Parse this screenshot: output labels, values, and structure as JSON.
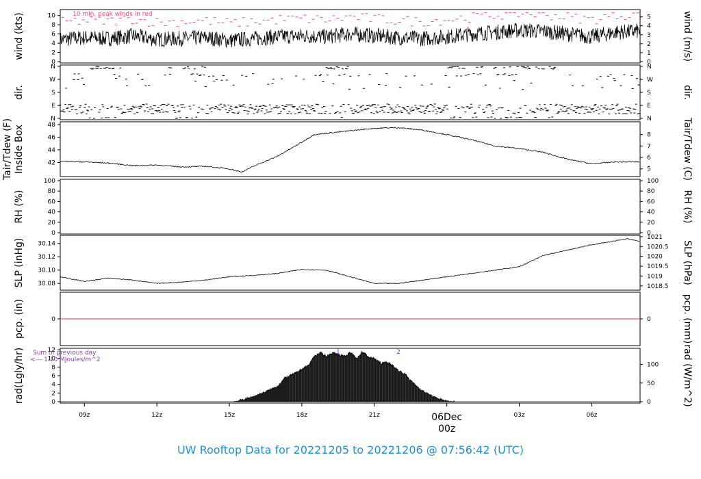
{
  "footer_title": "UW Rooftop Data for 20221205  to  20221206 @ 07:56:42  (UTC)",
  "date_marker": {
    "label_top": "06Dec",
    "label_bottom": "00z",
    "color": "#d05070"
  },
  "x_ticks": [
    "09z",
    "12z",
    "15z",
    "18z",
    "21z",
    "03z",
    "06z"
  ],
  "x_axis_hours": {
    "start": 8,
    "end": 32,
    "ticks": [
      9,
      12,
      15,
      18,
      21,
      27,
      30
    ],
    "date_hour": 24
  },
  "colors": {
    "axis": "#000000",
    "peak": "#e0507a",
    "precip": "#d04050",
    "rad_note": "#9932cc",
    "title": "#1e90d8",
    "rad_fill": "#1c1c1c"
  },
  "chart_data": [
    {
      "type": "line",
      "panel": "wind",
      "ylabel_left": "wind (kts)",
      "ylabel_right": "wind (m/s)",
      "left_ticks": [
        "0",
        "2",
        "4",
        "6",
        "8",
        "10"
      ],
      "right_ticks": [
        "0",
        "1",
        "2",
        "3",
        "4",
        "5"
      ],
      "ylim": [
        0,
        11
      ],
      "annotation": "10 min. peak winds in red",
      "series": [
        {
          "x": [
            8,
            9,
            10,
            11,
            12,
            13,
            14,
            15,
            16,
            17,
            18,
            19,
            20,
            21,
            22,
            23,
            24,
            25,
            26,
            27,
            28,
            29,
            30,
            31,
            32
          ],
          "values": [
            4.8,
            5.2,
            5.0,
            5.6,
            4.8,
            5.0,
            5.2,
            4.6,
            5.0,
            5.4,
            5.6,
            5.4,
            6.0,
            5.6,
            5.2,
            5.0,
            5.4,
            6.0,
            6.4,
            6.8,
            6.6,
            6.0,
            5.4,
            6.4,
            6.6
          ]
        }
      ]
    },
    {
      "type": "scatter",
      "panel": "dir",
      "ylabel_left": "dir.",
      "ylabel_right": "dir.",
      "left_ticks": [
        "N",
        "E",
        "S",
        "W",
        "N"
      ],
      "right_ticks": [
        "N",
        "E",
        "S",
        "W",
        "N"
      ],
      "ylim": [
        0,
        360
      ],
      "description_values": {
        "dominant_deg": 60,
        "secondary_deg": 350
      }
    },
    {
      "type": "line",
      "panel": "temp",
      "ylabel_left": "Tair/Tdew (F)",
      "ylabel_left2": "Inside Box",
      "ylabel_right": "Tair/Tdew (C)",
      "left_ticks": [
        "42",
        "44",
        "46",
        "48"
      ],
      "right_ticks": [
        "5",
        "6",
        "7",
        "8"
      ],
      "ylim": [
        40,
        48.2
      ],
      "series": [
        {
          "x": [
            8,
            9,
            10,
            11,
            12,
            13,
            14,
            15,
            15.5,
            16,
            17,
            18,
            18.5,
            19,
            20,
            21,
            22,
            23,
            24,
            25,
            26,
            27,
            28,
            29,
            30,
            31,
            32
          ],
          "values": [
            42.2,
            42.1,
            41.9,
            41.5,
            41.6,
            41.3,
            41.4,
            41.0,
            40.5,
            41.4,
            43.0,
            45.2,
            46.4,
            46.6,
            47.0,
            47.4,
            47.5,
            47.1,
            46.4,
            45.6,
            44.6,
            44.2,
            43.6,
            42.5,
            41.8,
            42.1,
            42.1
          ]
        }
      ]
    },
    {
      "type": "line",
      "panel": "rh",
      "ylabel_left": "RH (%)",
      "ylabel_right": "RH (%)",
      "left_ticks": [
        "0",
        "20",
        "40",
        "60",
        "80",
        "100"
      ],
      "right_ticks": [
        "0",
        "20",
        "40",
        "60",
        "80",
        "100"
      ],
      "ylim": [
        0,
        100
      ],
      "series": []
    },
    {
      "type": "line",
      "panel": "slp",
      "ylabel_left": "SLP (inHg)",
      "ylabel_right": "SLP (hPa)",
      "left_ticks": [
        "30.08",
        "30.10",
        "30.12",
        "30.14"
      ],
      "right_ticks": [
        "1018.5",
        "1019",
        "1019.5",
        "1020",
        "1020.5",
        "1021"
      ],
      "ylim": [
        30.072,
        30.15
      ],
      "series": [
        {
          "x": [
            8,
            9,
            10,
            11,
            12,
            13,
            14,
            15,
            16,
            17,
            18,
            19,
            20,
            21,
            22,
            23,
            24,
            25,
            26,
            27,
            28,
            29,
            30,
            31,
            31.5,
            32
          ],
          "values": [
            30.09,
            30.083,
            30.088,
            30.085,
            30.08,
            30.082,
            30.085,
            30.09,
            30.092,
            30.095,
            30.101,
            30.1,
            30.09,
            30.08,
            30.08,
            30.085,
            30.09,
            30.095,
            30.1,
            30.105,
            30.122,
            30.13,
            30.138,
            30.144,
            30.147,
            30.143
          ]
        }
      ]
    },
    {
      "type": "line",
      "panel": "pcp",
      "ylabel_left": "pcp. (in)",
      "ylabel_right": "pcp. (mm)",
      "left_ticks": [
        "0"
      ],
      "right_ticks": [
        "0"
      ],
      "ylim": [
        -1,
        1
      ],
      "series": [
        {
          "x": [
            8,
            32
          ],
          "values": [
            0,
            0
          ]
        }
      ]
    },
    {
      "type": "area",
      "panel": "rad",
      "ylabel_left": "rad(Lgly/hr)",
      "ylabel_right": "rad (W/m^2)",
      "left_ticks": [
        "0",
        "2",
        "4",
        "6",
        "8",
        "10",
        "12"
      ],
      "right_ticks": [
        "0",
        "50",
        "100"
      ],
      "ylim": [
        0,
        12
      ],
      "note_line1": "Sum of previous day",
      "note_line2": "<--- 1.10 MJoules/m^2",
      "top_labels": [
        "1",
        "2"
      ],
      "top_label_hours": [
        19.5,
        22.0
      ],
      "series": [
        {
          "x": [
            15.2,
            15.5,
            16,
            16.5,
            17,
            17.3,
            17.5,
            17.8,
            18,
            18.3,
            18.5,
            18.8,
            19,
            19.3,
            19.5,
            19.8,
            20,
            20.3,
            20.5,
            20.8,
            21,
            21.3,
            21.5,
            21.8,
            22,
            22.3,
            22.5,
            22.8,
            23,
            23.3,
            23.5,
            23.8,
            24,
            24.3
          ],
          "values": [
            0,
            0.4,
            1.2,
            2.3,
            3.6,
            5.5,
            6.0,
            6.8,
            7.6,
            8.5,
            10.5,
            11.3,
            10.5,
            11.3,
            11.0,
            10.4,
            11.4,
            10.0,
            11.6,
            10.2,
            10.0,
            8.8,
            9.2,
            8.2,
            7.2,
            6.3,
            4.9,
            3.4,
            2.5,
            1.6,
            1.0,
            0.5,
            0.1,
            0
          ]
        }
      ]
    }
  ]
}
